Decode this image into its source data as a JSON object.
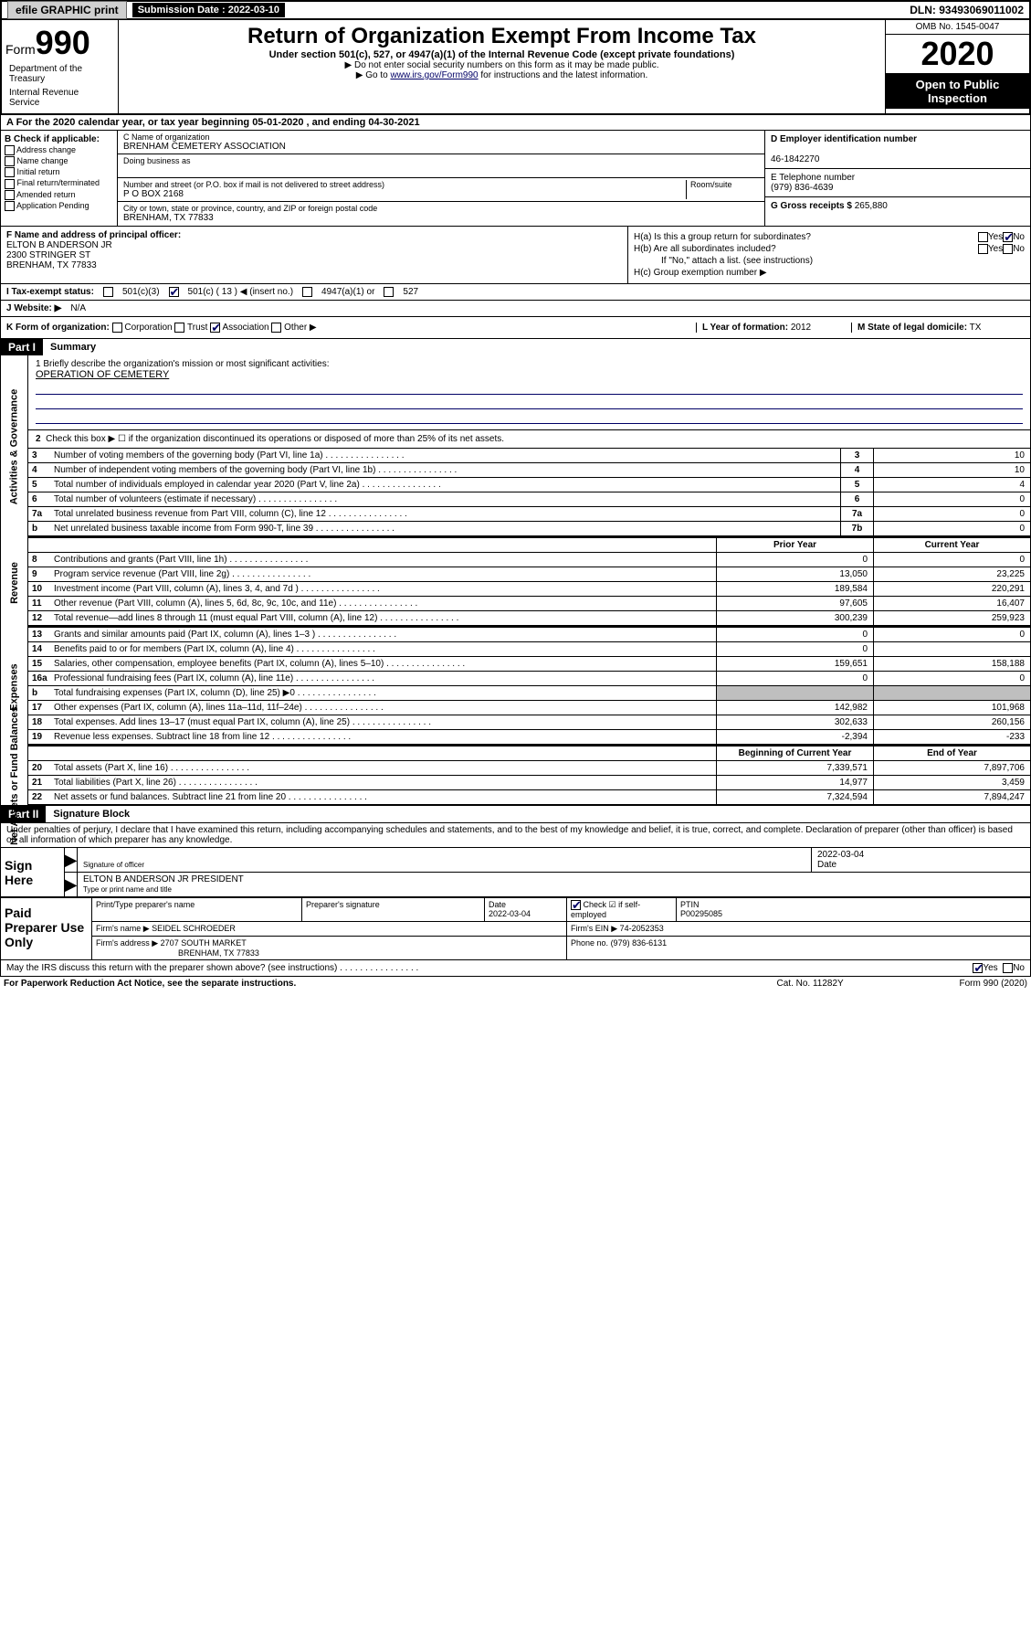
{
  "topbar": {
    "efile": "efile GRAPHIC print",
    "submission_label": "Submission Date : 2022-03-10",
    "dln": "DLN: 93493069011002"
  },
  "header": {
    "form_prefix": "Form",
    "form_number": "990",
    "title": "Return of Organization Exempt From Income Tax",
    "subtitle": "Under section 501(c), 527, or 4947(a)(1) of the Internal Revenue Code (except private foundations)",
    "note1": "▶ Do not enter social security numbers on this form as it may be made public.",
    "note2_pre": "▶ Go to ",
    "note2_link": "www.irs.gov/Form990",
    "note2_post": " for instructions and the latest information.",
    "omb": "OMB No. 1545-0047",
    "year": "2020",
    "open_public": "Open to Public Inspection",
    "dept": "Department of the Treasury",
    "irs": "Internal Revenue Service"
  },
  "line_a": "A For the 2020 calendar year, or tax year beginning 05-01-2020   , and ending 04-30-2021",
  "section_b": {
    "header": "B Check if applicable:",
    "items": [
      "Address change",
      "Name change",
      "Initial return",
      "Final return/terminated",
      "Amended return",
      "Application Pending"
    ]
  },
  "section_c": {
    "name_lbl": "C Name of organization",
    "name_val": "BRENHAM CEMETERY ASSOCIATION",
    "dba_lbl": "Doing business as",
    "street_lbl": "Number and street (or P.O. box if mail is not delivered to street address)",
    "room_lbl": "Room/suite",
    "street_val": "P O BOX 2168",
    "city_lbl": "City or town, state or province, country, and ZIP or foreign postal code",
    "city_val": "BRENHAM, TX  77833"
  },
  "section_d": {
    "ein_lbl": "D Employer identification number",
    "ein_val": "46-1842270",
    "tel_lbl": "E Telephone number",
    "tel_val": "(979) 836-4639",
    "gross_lbl": "G Gross receipts $",
    "gross_val": "265,880"
  },
  "section_f": {
    "lbl": "F Name and address of principal officer:",
    "name": "ELTON B ANDERSON JR",
    "addr1": "2300 STRINGER ST",
    "addr2": "BRENHAM, TX  77833"
  },
  "section_h": {
    "ha_lbl": "H(a)  Is this a group return for subordinates?",
    "hb_lbl": "H(b)  Are all subordinates included?",
    "hb_note": "If \"No,\" attach a list. (see instructions)",
    "hc_lbl": "H(c)  Group exemption number ▶"
  },
  "section_i": {
    "lbl": "I   Tax-exempt status:",
    "opt1": "501(c)(3)",
    "opt2": "501(c) ( 13 ) ◀ (insert no.)",
    "opt3": "4947(a)(1) or",
    "opt4": "527"
  },
  "section_j": {
    "lbl": "J   Website: ▶",
    "val": "N/A"
  },
  "section_k": {
    "lbl": "K Form of organization:",
    "opts": [
      "Corporation",
      "Trust",
      "Association",
      "Other ▶"
    ],
    "l_lbl": "L Year of formation:",
    "l_val": "2012",
    "m_lbl": "M State of legal domicile:",
    "m_val": "TX"
  },
  "part1": {
    "hdr": "Part I",
    "title": "Summary",
    "q1_lbl": "1  Briefly describe the organization's mission or most significant activities:",
    "q1_ans": "OPERATION OF CEMETERY",
    "q2_lbl": "Check this box ▶ ☐  if the organization discontinued its operations or disposed of more than 25% of its net assets.",
    "tabs": {
      "gov": "Activities & Governance",
      "rev": "Revenue",
      "exp": "Expenses",
      "net": "Net Assets or Fund Balances"
    },
    "lines_gov": [
      {
        "n": "3",
        "t": "Number of voting members of the governing body (Part VI, line 1a)",
        "b": "3",
        "v": "10"
      },
      {
        "n": "4",
        "t": "Number of independent voting members of the governing body (Part VI, line 1b)",
        "b": "4",
        "v": "10"
      },
      {
        "n": "5",
        "t": "Total number of individuals employed in calendar year 2020 (Part V, line 2a)",
        "b": "5",
        "v": "4"
      },
      {
        "n": "6",
        "t": "Total number of volunteers (estimate if necessary)",
        "b": "6",
        "v": "0"
      },
      {
        "n": "7a",
        "t": "Total unrelated business revenue from Part VIII, column (C), line 12",
        "b": "7a",
        "v": "0"
      },
      {
        "n": "b",
        "t": "Net unrelated business taxable income from Form 990-T, line 39",
        "b": "7b",
        "v": "0"
      }
    ],
    "hdr_prior": "Prior Year",
    "hdr_current": "Current Year",
    "lines_rev": [
      {
        "n": "8",
        "t": "Contributions and grants (Part VIII, line 1h)",
        "p": "0",
        "c": "0"
      },
      {
        "n": "9",
        "t": "Program service revenue (Part VIII, line 2g)",
        "p": "13,050",
        "c": "23,225"
      },
      {
        "n": "10",
        "t": "Investment income (Part VIII, column (A), lines 3, 4, and 7d )",
        "p": "189,584",
        "c": "220,291"
      },
      {
        "n": "11",
        "t": "Other revenue (Part VIII, column (A), lines 5, 6d, 8c, 9c, 10c, and 11e)",
        "p": "97,605",
        "c": "16,407"
      },
      {
        "n": "12",
        "t": "Total revenue—add lines 8 through 11 (must equal Part VIII, column (A), line 12)",
        "p": "300,239",
        "c": "259,923"
      }
    ],
    "lines_exp": [
      {
        "n": "13",
        "t": "Grants and similar amounts paid (Part IX, column (A), lines 1–3 )",
        "p": "0",
        "c": "0"
      },
      {
        "n": "14",
        "t": "Benefits paid to or for members (Part IX, column (A), line 4)",
        "p": "0",
        "c": ""
      },
      {
        "n": "15",
        "t": "Salaries, other compensation, employee benefits (Part IX, column (A), lines 5–10)",
        "p": "159,651",
        "c": "158,188"
      },
      {
        "n": "16a",
        "t": "Professional fundraising fees (Part IX, column (A), line 11e)",
        "p": "0",
        "c": "0"
      },
      {
        "n": "b",
        "t": "Total fundraising expenses (Part IX, column (D), line 25) ▶0",
        "p": "",
        "c": "",
        "shade": true
      },
      {
        "n": "17",
        "t": "Other expenses (Part IX, column (A), lines 11a–11d, 11f–24e)",
        "p": "142,982",
        "c": "101,968"
      },
      {
        "n": "18",
        "t": "Total expenses. Add lines 13–17 (must equal Part IX, column (A), line 25)",
        "p": "302,633",
        "c": "260,156"
      },
      {
        "n": "19",
        "t": "Revenue less expenses. Subtract line 18 from line 12",
        "p": "-2,394",
        "c": "-233"
      }
    ],
    "hdr_begin": "Beginning of Current Year",
    "hdr_end": "End of Year",
    "lines_net": [
      {
        "n": "20",
        "t": "Total assets (Part X, line 16)",
        "p": "7,339,571",
        "c": "7,897,706"
      },
      {
        "n": "21",
        "t": "Total liabilities (Part X, line 26)",
        "p": "14,977",
        "c": "3,459"
      },
      {
        "n": "22",
        "t": "Net assets or fund balances. Subtract line 21 from line 20",
        "p": "7,324,594",
        "c": "7,894,247"
      }
    ]
  },
  "part2": {
    "hdr": "Part II",
    "title": "Signature Block",
    "decl": "Under penalties of perjury, I declare that I have examined this return, including accompanying schedules and statements, and to the best of my knowledge and belief, it is true, correct, and complete. Declaration of preparer (other than officer) is based on all information of which preparer has any knowledge.",
    "sign_here": "Sign Here",
    "sig_officer_lbl": "Signature of officer",
    "sig_date": "2022-03-04",
    "sig_date_lbl": "Date",
    "officer_name": "ELTON B ANDERSON JR  PRESIDENT",
    "officer_name_lbl": "Type or print name and title",
    "paid_prep": "Paid Preparer Use Only",
    "prep_name_lbl": "Print/Type preparer's name",
    "prep_sig_lbl": "Preparer's signature",
    "prep_date_lbl": "Date",
    "prep_date": "2022-03-04",
    "self_emp_lbl": "Check ☑ if self-employed",
    "ptin_lbl": "PTIN",
    "ptin": "P00295085",
    "firm_name_lbl": "Firm's name   ▶",
    "firm_name": "SEIDEL SCHROEDER",
    "firm_ein_lbl": "Firm's EIN ▶",
    "firm_ein": "74-2052353",
    "firm_addr_lbl": "Firm's address ▶",
    "firm_addr1": "2707 SOUTH MARKET",
    "firm_addr2": "BRENHAM, TX  77833",
    "phone_lbl": "Phone no.",
    "phone": "(979) 836-6131",
    "irs_discuss": "May the IRS discuss this return with the preparer shown above? (see instructions)"
  },
  "footer": {
    "left": "For Paperwork Reduction Act Notice, see the separate instructions.",
    "mid": "Cat. No. 11282Y",
    "right": "Form 990 (2020)"
  },
  "yn": {
    "yes": "Yes",
    "no": "No"
  }
}
